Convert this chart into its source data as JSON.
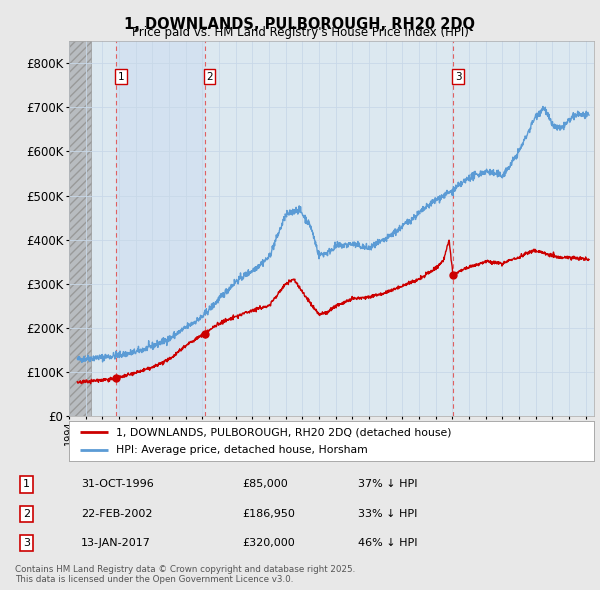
{
  "title": "1, DOWNLANDS, PULBOROUGH, RH20 2DQ",
  "subtitle": "Price paid vs. HM Land Registry's House Price Index (HPI)",
  "xlim": [
    1994.0,
    2025.5
  ],
  "ylim": [
    0,
    850000
  ],
  "yticks": [
    0,
    100000,
    200000,
    300000,
    400000,
    500000,
    600000,
    700000,
    800000
  ],
  "ytick_labels": [
    "£0",
    "£100K",
    "£200K",
    "£300K",
    "£400K",
    "£500K",
    "£600K",
    "£700K",
    "£800K"
  ],
  "hpi_color": "#5b9bd5",
  "price_color": "#cc0000",
  "vline_color": "#e06060",
  "grid_color": "#c8d8e8",
  "bg_color": "#e8e8e8",
  "plot_bg_color": "#dce8f0",
  "hatch_bg_color": "#c8ccd0",
  "blue_span_color": "#d0dff0",
  "legend_line1": "1, DOWNLANDS, PULBOROUGH, RH20 2DQ (detached house)",
  "legend_line2": "HPI: Average price, detached house, Horsham",
  "transactions": [
    {
      "num": 1,
      "date": "31-OCT-1996",
      "price": 85000,
      "pct": "37%",
      "x": 1996.83
    },
    {
      "num": 2,
      "date": "22-FEB-2002",
      "price": 186950,
      "pct": "33%",
      "x": 2002.13
    },
    {
      "num": 3,
      "date": "13-JAN-2017",
      "price": 320000,
      "pct": "46%",
      "x": 2017.04
    }
  ],
  "footer": "Contains HM Land Registry data © Crown copyright and database right 2025.\nThis data is licensed under the Open Government Licence v3.0.",
  "hatch_end": 1995.3
}
